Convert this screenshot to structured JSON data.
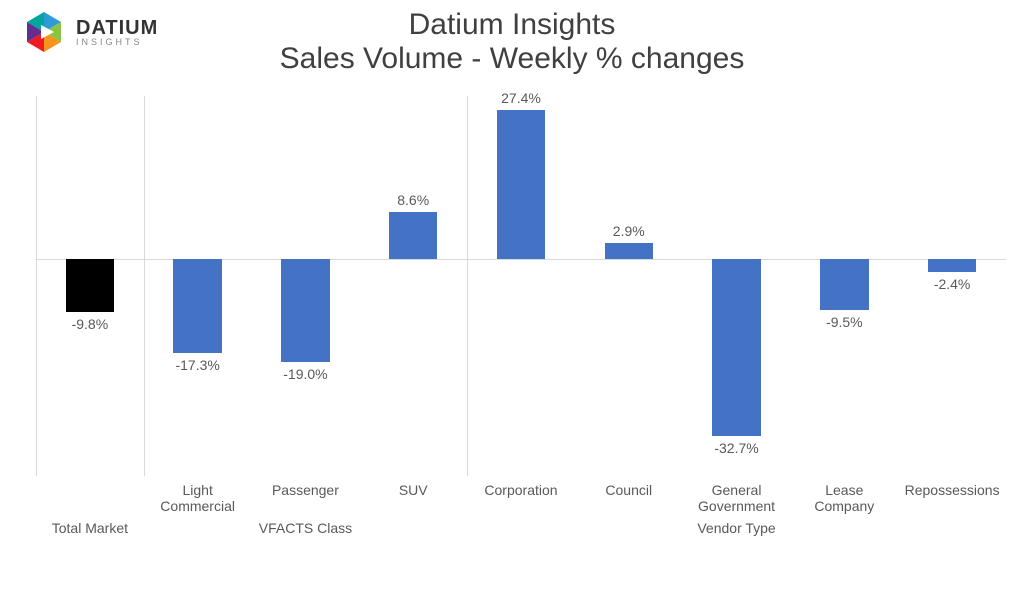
{
  "logo": {
    "brand": "DATIUM",
    "sub": "INSIGHTS",
    "mark_colors": [
      "#2e9bd6",
      "#8bc53f",
      "#f7941e",
      "#ed1c24",
      "#662d91",
      "#00a79d"
    ]
  },
  "title": {
    "line1": "Datium Insights",
    "line2": "Sales Volume - Weekly % changes"
  },
  "chart": {
    "type": "bar",
    "background_color": "#ffffff",
    "grid_color": "#d9d9d9",
    "text_color": "#595959",
    "title_color": "#404040",
    "title_fontsize": 30,
    "label_fontsize": 14,
    "ylim": [
      -40,
      30
    ],
    "baseline": 0,
    "bar_width_ratio": 0.45,
    "groups": [
      {
        "name": "Total Market",
        "slots": 1
      },
      {
        "name": "VFACTS Class",
        "slots": 3
      },
      {
        "name": "Vendor Type",
        "slots": 5
      }
    ],
    "items": [
      {
        "category": "",
        "group": 0,
        "value": -9.8,
        "label": "-9.8%",
        "color": "#000000"
      },
      {
        "category": "Light Commercial",
        "group": 1,
        "value": -17.3,
        "label": "-17.3%",
        "color": "#4472c4"
      },
      {
        "category": "Passenger",
        "group": 1,
        "value": -19.0,
        "label": "-19.0%",
        "color": "#4472c4"
      },
      {
        "category": "SUV",
        "group": 1,
        "value": 8.6,
        "label": "8.6%",
        "color": "#4472c4"
      },
      {
        "category": "Corporation",
        "group": 2,
        "value": 27.4,
        "label": "27.4%",
        "color": "#4472c4"
      },
      {
        "category": "Council",
        "group": 2,
        "value": 2.9,
        "label": "2.9%",
        "color": "#4472c4"
      },
      {
        "category": "General Government",
        "group": 2,
        "value": -32.7,
        "label": "-32.7%",
        "color": "#4472c4"
      },
      {
        "category": "Lease Company",
        "group": 2,
        "value": -9.5,
        "label": "-9.5%",
        "color": "#4472c4"
      },
      {
        "category": "Repossessions",
        "group": 2,
        "value": -2.4,
        "label": "-2.4%",
        "color": "#4472c4"
      }
    ]
  }
}
